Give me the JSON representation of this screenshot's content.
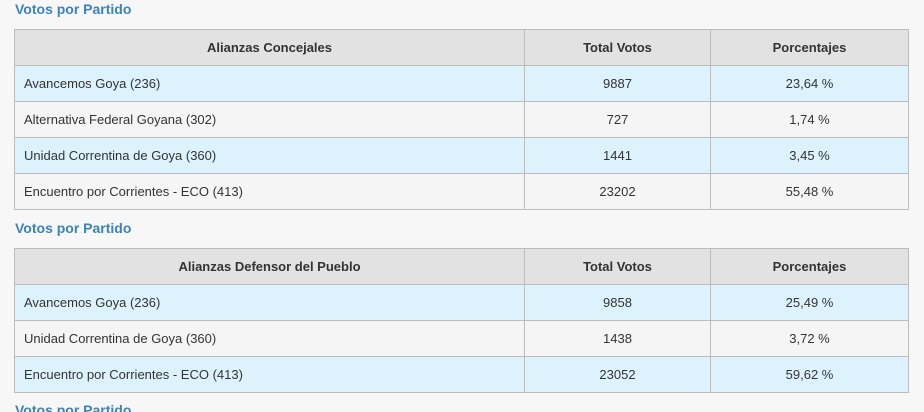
{
  "sections": [
    {
      "title": "Votos por Partido",
      "headers": {
        "name": "Alianzas Concejales",
        "votes": "Total Votos",
        "percent": "Porcentajes"
      },
      "rows": [
        {
          "name": "Avancemos Goya (236)",
          "votes": "9887",
          "percent": "23,64 %"
        },
        {
          "name": "Alternativa Federal Goyana (302)",
          "votes": "727",
          "percent": "1,74 %"
        },
        {
          "name": "Unidad Correntina de Goya (360)",
          "votes": "1441",
          "percent": "3,45 %"
        },
        {
          "name": "Encuentro por Corrientes - ECO (413)",
          "votes": "23202",
          "percent": "55,48 %"
        }
      ]
    },
    {
      "title": "Votos por Partido",
      "headers": {
        "name": "Alianzas Defensor del Pueblo",
        "votes": "Total Votos",
        "percent": "Porcentajes"
      },
      "rows": [
        {
          "name": "Avancemos Goya (236)",
          "votes": "9858",
          "percent": "25,49 %"
        },
        {
          "name": "Unidad Correntina de Goya (360)",
          "votes": "1438",
          "percent": "3,72 %"
        },
        {
          "name": "Encuentro por Corrientes - ECO (413)",
          "votes": "23052",
          "percent": "59,62 %"
        }
      ]
    },
    {
      "title": "Votos por Partido"
    }
  ],
  "colors": {
    "section_title": "#3b83b8",
    "header_bg": "#e2e2e2",
    "row_blue": "#dcf3fd",
    "row_grey": "#f5f5f5",
    "border": "#bcbcbc"
  }
}
